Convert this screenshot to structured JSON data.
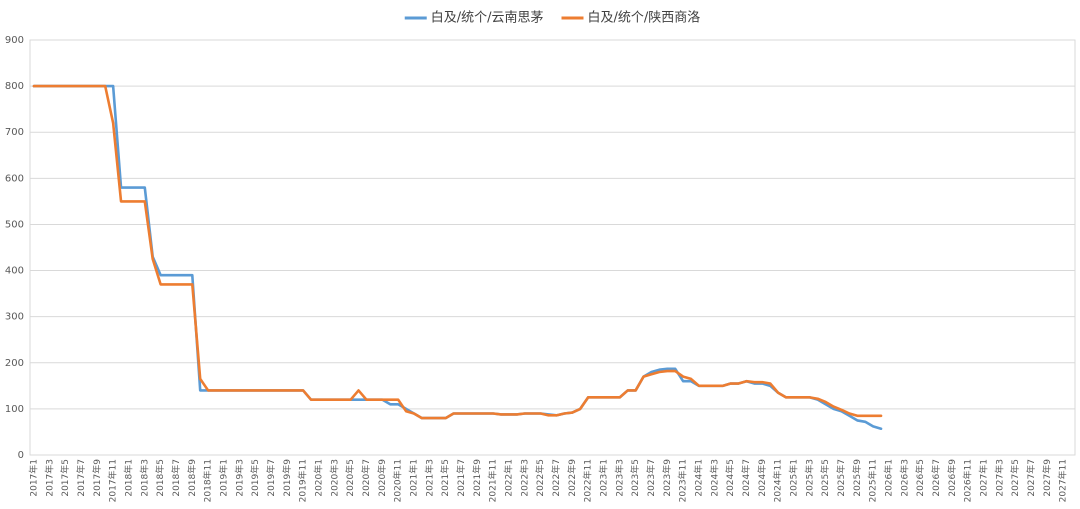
{
  "chart_data": {
    "type": "line",
    "categories": [
      "2017年1",
      null,
      "2017年3",
      null,
      "2017年5",
      null,
      "2017年7",
      null,
      "2017年9",
      null,
      "2017年11",
      null,
      "2018年1",
      null,
      "2018年3",
      null,
      "2018年5",
      null,
      "2018年7",
      null,
      "2018年9",
      null,
      "2018年11",
      null,
      "2019年1",
      null,
      "2019年3",
      null,
      "2019年5",
      null,
      "2019年7",
      null,
      "2019年9",
      null,
      "2019年11",
      null,
      "2020年1",
      null,
      "2020年3",
      null,
      "2020年5",
      null,
      "2020年7",
      null,
      "2020年9",
      null,
      "2020年11",
      null,
      "2021年1",
      null,
      "2021年3",
      null,
      "2021年5",
      null,
      "2021年7",
      null,
      "2021年9",
      null,
      "2021年11",
      null,
      "2022年1",
      null,
      "2022年3",
      null,
      "2022年5",
      null,
      "2022年7",
      null,
      "2022年9",
      null,
      "2022年11",
      null,
      "2023年1",
      null,
      "2023年3",
      null,
      "2023年5",
      null,
      "2023年7",
      null,
      "2023年9",
      null,
      "2023年11",
      null,
      "2024年1",
      null,
      "2024年3",
      null,
      "2024年5",
      null,
      "2024年7",
      null,
      "2024年9",
      null,
      "2024年11",
      null,
      "2025年1",
      null,
      "2025年3",
      null,
      "2025年5",
      null,
      "2025年7",
      null,
      "2025年9",
      null,
      "2025年11",
      null,
      "2026年1",
      null,
      "2026年3",
      null,
      "2026年5",
      null,
      "2026年7",
      null,
      "2026年9",
      null,
      "2026年11",
      null,
      "2027年1",
      null,
      "2027年3",
      null,
      "2027年5",
      null,
      "2027年7",
      null,
      "2027年9",
      null,
      "2027年11",
      null
    ],
    "series": [
      {
        "name": "白及/统个/云南思茅",
        "color": "#5b9bd5",
        "values": [
          800,
          800,
          800,
          800,
          800,
          800,
          800,
          800,
          800,
          800,
          800,
          580,
          580,
          580,
          580,
          430,
          390,
          390,
          390,
          390,
          390,
          140,
          140,
          140,
          140,
          140,
          140,
          140,
          140,
          140,
          140,
          140,
          140,
          140,
          140,
          120,
          120,
          120,
          120,
          120,
          120,
          120,
          120,
          120,
          120,
          110,
          110,
          100,
          90,
          80,
          80,
          80,
          80,
          90,
          90,
          90,
          90,
          90,
          90,
          88,
          88,
          88,
          90,
          90,
          90,
          88,
          86,
          90,
          92,
          100,
          125,
          125,
          125,
          125,
          125,
          140,
          140,
          170,
          180,
          185,
          187,
          187,
          160,
          160,
          150,
          150,
          150,
          150,
          155,
          155,
          160,
          155,
          155,
          150,
          135,
          125,
          125,
          125,
          125,
          120,
          110,
          100,
          95,
          85,
          75,
          72,
          62,
          57,
          null,
          null,
          null,
          null,
          null,
          null,
          null,
          null,
          null,
          null,
          null,
          null,
          null,
          null,
          null,
          null,
          null,
          null,
          null,
          null,
          null,
          null,
          null,
          null
        ]
      },
      {
        "name": "白及/统个/陕西商洛",
        "color": "#ed7d31",
        "values": [
          800,
          800,
          800,
          800,
          800,
          800,
          800,
          800,
          800,
          800,
          720,
          550,
          550,
          550,
          550,
          425,
          370,
          370,
          370,
          370,
          370,
          165,
          140,
          140,
          140,
          140,
          140,
          140,
          140,
          140,
          140,
          140,
          140,
          140,
          140,
          120,
          120,
          120,
          120,
          120,
          120,
          140,
          120,
          120,
          120,
          120,
          120,
          95,
          90,
          80,
          80,
          80,
          80,
          90,
          90,
          90,
          90,
          90,
          90,
          88,
          88,
          88,
          90,
          90,
          90,
          86,
          86,
          90,
          92,
          100,
          125,
          125,
          125,
          125,
          125,
          140,
          140,
          170,
          175,
          180,
          182,
          182,
          170,
          165,
          150,
          150,
          150,
          150,
          155,
          155,
          160,
          158,
          158,
          155,
          135,
          125,
          125,
          125,
          125,
          122,
          115,
          105,
          98,
          90,
          85,
          85,
          85,
          85,
          null,
          null,
          null,
          null,
          null,
          null,
          null,
          null,
          null,
          null,
          null,
          null,
          null,
          null,
          null,
          null,
          null,
          null,
          null,
          null,
          null,
          null,
          null,
          null
        ]
      }
    ],
    "ylim": [
      0,
      900
    ],
    "yticks": [
      0,
      100,
      200,
      300,
      400,
      500,
      600,
      700,
      800,
      900
    ],
    "grid": true,
    "legend": "top"
  }
}
